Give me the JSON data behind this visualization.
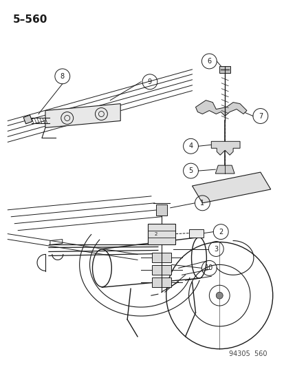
{
  "title": "5–560",
  "watermark": "94305  560",
  "bg_color": "#ffffff",
  "line_color": "#1a1a1a",
  "gray": "#888888",
  "light_gray": "#cccccc"
}
